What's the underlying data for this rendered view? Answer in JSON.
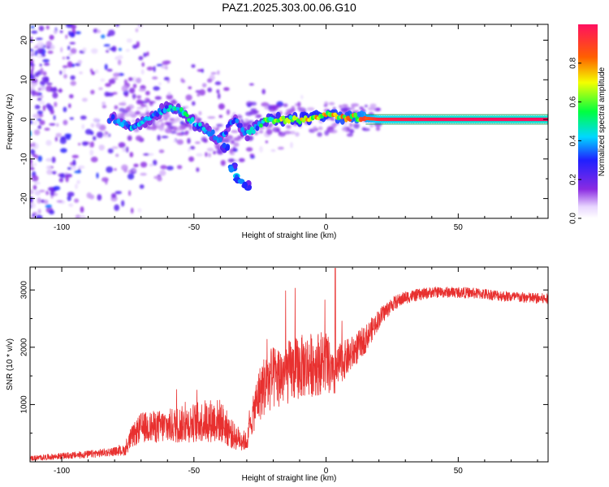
{
  "figure_title": "PAZ1.2025.303.00.06.G10",
  "chart_data": [
    {
      "type": "heatmap",
      "title": "PAZ1.2025.303.00.06.G10",
      "xlabel": "Height of straight line (km)",
      "ylabel": "Frequency (Hz)",
      "xlim": [
        -112,
        84
      ],
      "ylim": [
        -25,
        24
      ],
      "xticks": [
        -100,
        -50,
        0,
        50
      ],
      "yticks": [
        -20,
        -10,
        0,
        10,
        20
      ],
      "colorbar": {
        "label": "Normalized spectral amplitude",
        "range": [
          0,
          1
        ],
        "ticks": [
          0.0,
          0.2,
          0.4,
          0.6,
          0.8
        ],
        "colormap": "rainbow (violet to red)"
      },
      "main_ridge": [
        {
          "x": -80,
          "freq": 0,
          "amp": 0.32
        },
        {
          "x": -72,
          "freq": -2,
          "amp": 0.42
        },
        {
          "x": -65,
          "freq": 1,
          "amp": 0.35
        },
        {
          "x": -60,
          "freq": 3,
          "amp": 0.4
        },
        {
          "x": -55,
          "freq": 2,
          "amp": 0.48
        },
        {
          "x": -50,
          "freq": -1,
          "amp": 0.45
        },
        {
          "x": -45,
          "freq": -3,
          "amp": 0.4
        },
        {
          "x": -40,
          "freq": -5,
          "amp": 0.35
        },
        {
          "x": -35,
          "freq": 0,
          "amp": 0.3
        },
        {
          "x": -30,
          "freq": -4,
          "amp": 0.38
        },
        {
          "x": -25,
          "freq": -1,
          "amp": 0.45
        },
        {
          "x": -20,
          "freq": 0,
          "amp": 0.6
        },
        {
          "x": -10,
          "freq": 0,
          "amp": 0.65
        },
        {
          "x": 0,
          "freq": 1,
          "amp": 0.7
        },
        {
          "x": 10,
          "freq": 0.5,
          "amp": 0.75
        },
        {
          "x": 20,
          "freq": 0,
          "amp": 0.95
        },
        {
          "x": 40,
          "freq": 0,
          "amp": 1.0
        },
        {
          "x": 60,
          "freq": 0,
          "amp": 1.0
        },
        {
          "x": 84,
          "freq": 0,
          "amp": 1.0
        }
      ],
      "side_branch": [
        {
          "x": -38,
          "freq": -7,
          "amp": 0.3
        },
        {
          "x": -35,
          "freq": -12,
          "amp": 0.35
        },
        {
          "x": -33,
          "freq": -15,
          "amp": 0.4
        },
        {
          "x": -30,
          "freq": -17,
          "amp": 0.3
        }
      ]
    },
    {
      "type": "line",
      "xlabel": "Height of straight line (km)",
      "ylabel": "SNR (10 * v/v)",
      "xlim": [
        -112,
        84
      ],
      "ylim": [
        0,
        3400
      ],
      "xticks": [
        -100,
        -50,
        0,
        50
      ],
      "yticks": [
        1000,
        2000,
        3000
      ],
      "series": [
        {
          "name": "SNR",
          "color": "#e8302f",
          "x": [
            -112,
            -100,
            -90,
            -80,
            -76,
            -74,
            -70,
            -60,
            -50,
            -45,
            -40,
            -35,
            -30,
            -28,
            -26,
            -24,
            -20,
            -15,
            -10,
            -5,
            0,
            3,
            5,
            10,
            15,
            20,
            25,
            30,
            40,
            50,
            60,
            70,
            84
          ],
          "base": [
            60,
            100,
            130,
            180,
            200,
            400,
            600,
            620,
            680,
            720,
            720,
            450,
            350,
            750,
            1100,
            1300,
            1450,
            1550,
            1650,
            1700,
            1750,
            1450,
            1700,
            1900,
            2150,
            2500,
            2750,
            2870,
            2960,
            2960,
            2930,
            2880,
            2840
          ],
          "noise": [
            45,
            55,
            65,
            75,
            90,
            180,
            260,
            300,
            340,
            380,
            380,
            240,
            160,
            280,
            460,
            520,
            560,
            560,
            560,
            560,
            560,
            360,
            360,
            300,
            240,
            170,
            130,
            110,
            95,
            95,
            95,
            95,
            95
          ],
          "peak_max": 3380
        }
      ]
    }
  ]
}
